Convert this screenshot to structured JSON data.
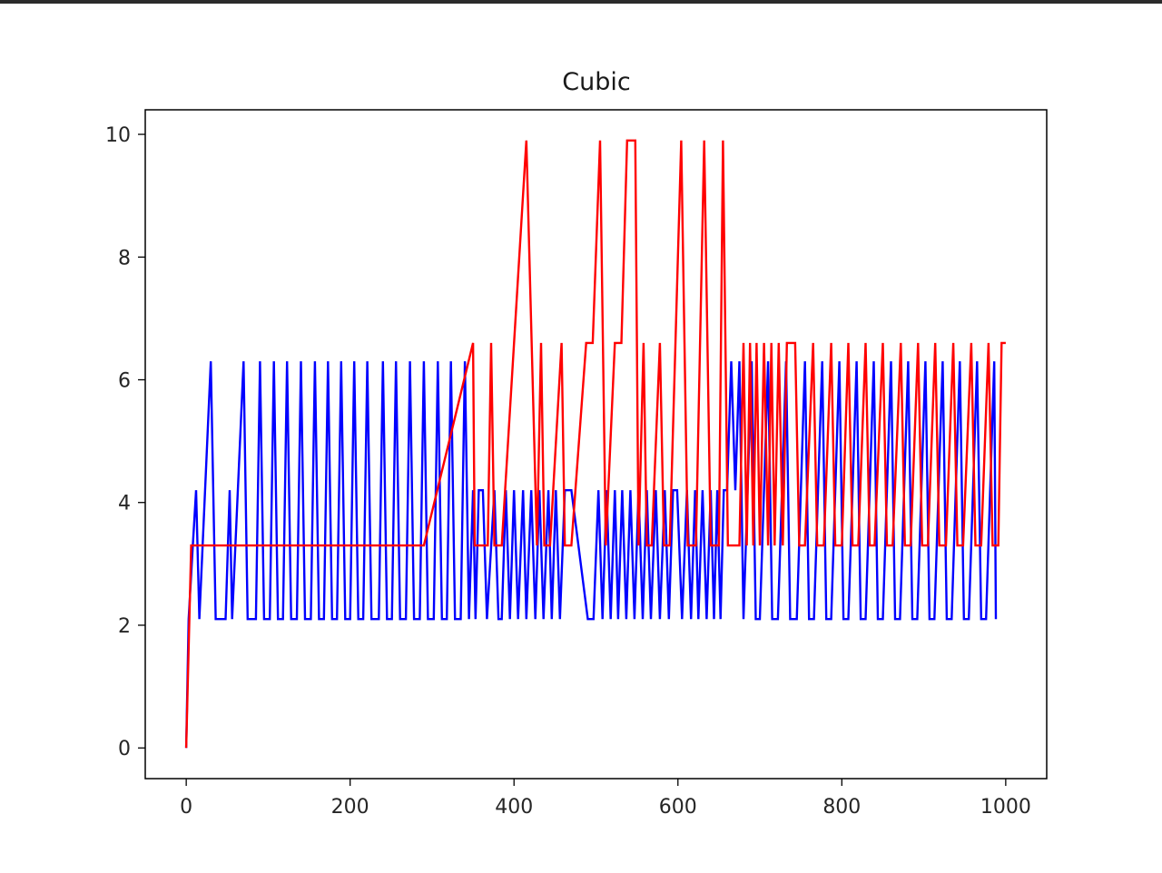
{
  "chart_data": {
    "type": "line",
    "title": "Cubic",
    "xlabel": "",
    "ylabel": "",
    "xlim": [
      -50,
      1050
    ],
    "ylim": [
      -0.5,
      10.4
    ],
    "xticks": [
      0,
      200,
      400,
      600,
      800,
      1000
    ],
    "yticks": [
      0,
      2,
      4,
      6,
      8,
      10
    ],
    "grid": false,
    "legend": "none",
    "series": [
      {
        "color": "#0000ff",
        "points": [
          [
            0,
            0
          ],
          [
            3,
            2.1
          ],
          [
            8,
            3.3
          ],
          [
            12,
            4.2
          ],
          [
            16,
            2.1
          ],
          [
            30,
            6.3
          ],
          [
            36,
            2.1
          ],
          [
            48,
            2.1
          ],
          [
            53,
            4.2
          ],
          [
            56,
            2.1
          ],
          [
            70,
            6.3
          ],
          [
            75,
            2.1
          ],
          [
            85,
            2.1
          ],
          [
            90,
            6.3
          ],
          [
            95,
            2.1
          ],
          [
            102,
            2.1
          ],
          [
            107,
            6.3
          ],
          [
            112,
            2.1
          ],
          [
            118,
            2.1
          ],
          [
            123,
            6.3
          ],
          [
            128,
            2.1
          ],
          [
            135,
            2.1
          ],
          [
            140,
            6.3
          ],
          [
            145,
            2.1
          ],
          [
            152,
            2.1
          ],
          [
            157,
            6.3
          ],
          [
            162,
            2.1
          ],
          [
            168,
            2.1
          ],
          [
            173,
            6.3
          ],
          [
            178,
            2.1
          ],
          [
            184,
            2.1
          ],
          [
            189,
            6.3
          ],
          [
            194,
            2.1
          ],
          [
            200,
            2.1
          ],
          [
            205,
            6.3
          ],
          [
            210,
            2.1
          ],
          [
            216,
            2.1
          ],
          [
            221,
            6.3
          ],
          [
            226,
            2.1
          ],
          [
            235,
            2.1
          ],
          [
            240,
            6.3
          ],
          [
            245,
            2.1
          ],
          [
            251,
            2.1
          ],
          [
            256,
            6.3
          ],
          [
            261,
            2.1
          ],
          [
            268,
            2.1
          ],
          [
            273,
            6.3
          ],
          [
            278,
            2.1
          ],
          [
            285,
            2.1
          ],
          [
            290,
            6.3
          ],
          [
            295,
            2.1
          ],
          [
            302,
            2.1
          ],
          [
            307,
            6.3
          ],
          [
            312,
            2.1
          ],
          [
            318,
            2.1
          ],
          [
            323,
            6.3
          ],
          [
            328,
            2.1
          ],
          [
            335,
            2.1
          ],
          [
            340,
            6.3
          ],
          [
            345,
            2.1
          ],
          [
            350,
            4.2
          ],
          [
            353,
            2.1
          ],
          [
            357,
            4.2
          ],
          [
            362,
            4.2
          ],
          [
            367,
            2.1
          ],
          [
            376,
            4.2
          ],
          [
            381,
            2.1
          ],
          [
            385,
            2.1
          ],
          [
            390,
            4.2
          ],
          [
            395,
            2.1
          ],
          [
            400,
            4.2
          ],
          [
            405,
            2.1
          ],
          [
            411,
            4.2
          ],
          [
            415,
            2.1
          ],
          [
            421,
            4.2
          ],
          [
            426,
            2.1
          ],
          [
            431,
            4.2
          ],
          [
            436,
            2.1
          ],
          [
            442,
            4.2
          ],
          [
            446,
            2.1
          ],
          [
            451,
            4.2
          ],
          [
            456,
            2.1
          ],
          [
            462,
            4.2
          ],
          [
            470,
            4.2
          ],
          [
            490,
            2.1
          ],
          [
            497,
            2.1
          ],
          [
            503,
            4.2
          ],
          [
            508,
            2.1
          ],
          [
            513,
            4.2
          ],
          [
            518,
            2.1
          ],
          [
            523,
            4.2
          ],
          [
            527,
            2.1
          ],
          [
            532,
            4.2
          ],
          [
            537,
            2.1
          ],
          [
            542,
            4.2
          ],
          [
            547,
            2.1
          ],
          [
            552,
            4.2
          ],
          [
            557,
            2.1
          ],
          [
            562,
            4.2
          ],
          [
            567,
            2.1
          ],
          [
            573,
            4.2
          ],
          [
            578,
            2.1
          ],
          [
            584,
            4.2
          ],
          [
            589,
            2.1
          ],
          [
            594,
            4.2
          ],
          [
            599,
            4.2
          ],
          [
            605,
            2.1
          ],
          [
            611,
            4.2
          ],
          [
            616,
            2.1
          ],
          [
            621,
            4.2
          ],
          [
            625,
            2.1
          ],
          [
            630,
            4.2
          ],
          [
            635,
            2.1
          ],
          [
            640,
            4.2
          ],
          [
            644,
            2.1
          ],
          [
            648,
            4.2
          ],
          [
            652,
            2.1
          ],
          [
            656,
            4.2
          ],
          [
            660,
            4.2
          ],
          [
            665,
            6.3
          ],
          [
            670,
            4.2
          ],
          [
            675,
            6.3
          ],
          [
            680,
            2.1
          ],
          [
            685,
            4.2
          ],
          [
            690,
            6.3
          ],
          [
            695,
            2.1
          ],
          [
            700,
            2.1
          ],
          [
            705,
            4.2
          ],
          [
            710,
            6.3
          ],
          [
            715,
            2.1
          ],
          [
            722,
            2.1
          ],
          [
            727,
            4.2
          ],
          [
            732,
            6.3
          ],
          [
            737,
            2.1
          ],
          [
            745,
            2.1
          ],
          [
            750,
            4.2
          ],
          [
            755,
            6.3
          ],
          [
            760,
            2.1
          ],
          [
            766,
            2.1
          ],
          [
            771,
            4.2
          ],
          [
            776,
            6.3
          ],
          [
            781,
            2.1
          ],
          [
            787,
            2.1
          ],
          [
            792,
            4.2
          ],
          [
            797,
            6.3
          ],
          [
            802,
            2.1
          ],
          [
            808,
            2.1
          ],
          [
            813,
            4.2
          ],
          [
            818,
            6.3
          ],
          [
            823,
            2.1
          ],
          [
            829,
            2.1
          ],
          [
            834,
            4.2
          ],
          [
            839,
            6.3
          ],
          [
            844,
            2.1
          ],
          [
            850,
            2.1
          ],
          [
            855,
            4.2
          ],
          [
            860,
            6.3
          ],
          [
            865,
            2.1
          ],
          [
            871,
            2.1
          ],
          [
            876,
            4.2
          ],
          [
            881,
            6.3
          ],
          [
            886,
            2.1
          ],
          [
            892,
            2.1
          ],
          [
            897,
            4.2
          ],
          [
            902,
            6.3
          ],
          [
            907,
            2.1
          ],
          [
            913,
            2.1
          ],
          [
            918,
            4.2
          ],
          [
            923,
            6.3
          ],
          [
            928,
            2.1
          ],
          [
            934,
            2.1
          ],
          [
            939,
            4.2
          ],
          [
            944,
            6.3
          ],
          [
            949,
            2.1
          ],
          [
            955,
            2.1
          ],
          [
            960,
            4.2
          ],
          [
            965,
            6.3
          ],
          [
            970,
            2.1
          ],
          [
            976,
            2.1
          ],
          [
            981,
            4.2
          ],
          [
            986,
            6.3
          ],
          [
            988,
            2.1
          ]
        ]
      },
      {
        "color": "#ff0000",
        "points": [
          [
            0,
            0
          ],
          [
            6,
            3.3
          ],
          [
            290,
            3.3
          ],
          [
            350,
            6.6
          ],
          [
            352,
            3.3
          ],
          [
            368,
            3.3
          ],
          [
            372,
            6.6
          ],
          [
            376,
            3.3
          ],
          [
            385,
            3.3
          ],
          [
            415,
            9.9
          ],
          [
            428,
            3.3
          ],
          [
            433,
            6.6
          ],
          [
            437,
            3.3
          ],
          [
            444,
            3.3
          ],
          [
            458,
            6.6
          ],
          [
            462,
            3.3
          ],
          [
            470,
            3.3
          ],
          [
            488,
            6.6
          ],
          [
            496,
            6.6
          ],
          [
            505,
            9.9
          ],
          [
            512,
            3.3
          ],
          [
            523,
            6.6
          ],
          [
            531,
            6.6
          ],
          [
            538,
            9.9
          ],
          [
            548,
            9.9
          ],
          [
            552,
            3.3
          ],
          [
            558,
            6.6
          ],
          [
            562,
            3.3
          ],
          [
            568,
            3.3
          ],
          [
            578,
            6.6
          ],
          [
            583,
            3.3
          ],
          [
            590,
            3.3
          ],
          [
            604,
            9.9
          ],
          [
            612,
            3.3
          ],
          [
            622,
            3.3
          ],
          [
            632,
            9.9
          ],
          [
            640,
            3.3
          ],
          [
            650,
            3.3
          ],
          [
            655,
            9.9
          ],
          [
            661,
            3.3
          ],
          [
            675,
            3.3
          ],
          [
            680,
            6.6
          ],
          [
            684,
            3.3
          ],
          [
            688,
            6.6
          ],
          [
            692,
            3.3
          ],
          [
            696,
            6.6
          ],
          [
            700,
            3.3
          ],
          [
            705,
            6.6
          ],
          [
            710,
            3.3
          ],
          [
            714,
            6.6
          ],
          [
            718,
            3.3
          ],
          [
            723,
            6.6
          ],
          [
            728,
            3.3
          ],
          [
            733,
            6.6
          ],
          [
            743,
            6.6
          ],
          [
            748,
            3.3
          ],
          [
            755,
            3.3
          ],
          [
            765,
            6.6
          ],
          [
            770,
            3.3
          ],
          [
            778,
            3.3
          ],
          [
            787,
            6.6
          ],
          [
            792,
            3.3
          ],
          [
            800,
            3.3
          ],
          [
            808,
            6.6
          ],
          [
            813,
            3.3
          ],
          [
            820,
            3.3
          ],
          [
            829,
            6.6
          ],
          [
            834,
            3.3
          ],
          [
            840,
            3.3
          ],
          [
            850,
            6.6
          ],
          [
            855,
            3.3
          ],
          [
            862,
            3.3
          ],
          [
            872,
            6.6
          ],
          [
            877,
            3.3
          ],
          [
            884,
            3.3
          ],
          [
            893,
            6.6
          ],
          [
            898,
            3.3
          ],
          [
            905,
            3.3
          ],
          [
            914,
            6.6
          ],
          [
            919,
            3.3
          ],
          [
            927,
            3.3
          ],
          [
            936,
            6.6
          ],
          [
            941,
            3.3
          ],
          [
            948,
            3.3
          ],
          [
            958,
            6.6
          ],
          [
            963,
            3.3
          ],
          [
            970,
            3.3
          ],
          [
            979,
            6.6
          ],
          [
            984,
            3.3
          ],
          [
            991,
            3.3
          ],
          [
            995,
            6.6
          ],
          [
            1000,
            6.6
          ]
        ]
      }
    ]
  }
}
